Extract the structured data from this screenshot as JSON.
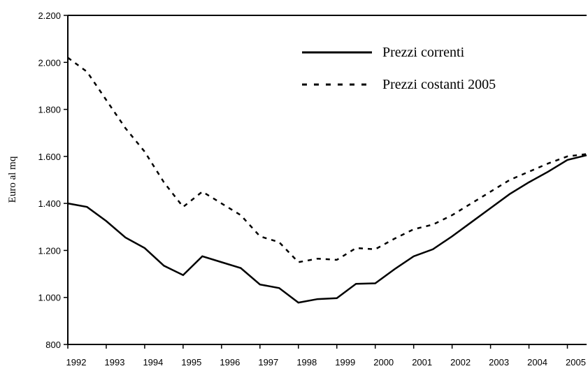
{
  "chart_data": {
    "type": "line",
    "ylabel": "Euro al mq",
    "categories": [
      "1992",
      null,
      "1993",
      null,
      "1994",
      null,
      "1995",
      null,
      "1996",
      null,
      "1997",
      null,
      "1998",
      null,
      "1999",
      null,
      "2000",
      null,
      "2001",
      null,
      "2002",
      null,
      "2003",
      null,
      "2004",
      null,
      "2005",
      null
    ],
    "series": [
      {
        "name": "Prezzi correnti",
        "color": "#000000",
        "style": "solid",
        "values": [
          1400,
          1385,
          1325,
          1255,
          1210,
          1135,
          1095,
          1175,
          1150,
          1125,
          1055,
          1040,
          978,
          993,
          997,
          1058,
          1060,
          1120,
          1175,
          1205,
          1260,
          1320,
          1380,
          1440,
          1490,
          1535,
          1585,
          1605
        ]
      },
      {
        "name": "Prezzi costanti 2005",
        "color": "#000000",
        "style": "dashed",
        "values": [
          2020,
          1960,
          1840,
          1720,
          1620,
          1490,
          1385,
          1450,
          1400,
          1350,
          1260,
          1235,
          1150,
          1165,
          1160,
          1210,
          1205,
          1250,
          1290,
          1310,
          1350,
          1400,
          1450,
          1500,
          1535,
          1570,
          1600,
          1610
        ]
      }
    ],
    "ylim": [
      800,
      2200
    ],
    "yticks": [
      {
        "value": 800,
        "label": "800"
      },
      {
        "value": 1000,
        "label": "1.000"
      },
      {
        "value": 1200,
        "label": "1.200"
      },
      {
        "value": 1400,
        "label": "1.400"
      },
      {
        "value": 1600,
        "label": "1.600"
      },
      {
        "value": 1800,
        "label": "1.800"
      },
      {
        "value": 2000,
        "label": "2.000"
      },
      {
        "value": 2200,
        "label": "2.200"
      }
    ],
    "legend": "upper right",
    "grid": false
  }
}
